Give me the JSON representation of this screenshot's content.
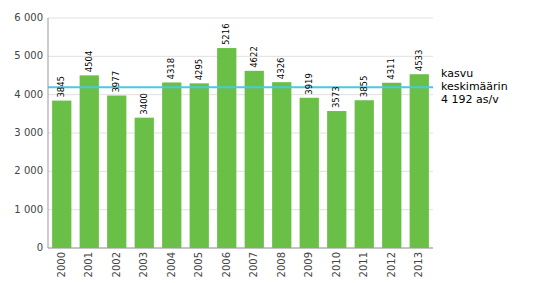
{
  "chart_data": {
    "type": "bar",
    "categories": [
      "2000",
      "2001",
      "2002",
      "2003",
      "2004",
      "2005",
      "2006",
      "2007",
      "2008",
      "2009",
      "2010",
      "2011",
      "2012",
      "2013"
    ],
    "values": [
      3845,
      4504,
      3977,
      3400,
      4318,
      4295,
      5216,
      4622,
      4326,
      3919,
      3573,
      3855,
      4311,
      4533
    ],
    "color": "#6abf47",
    "ylim": [
      0,
      6000
    ],
    "yticks": [
      0,
      {
        "value": 1000,
        "label": "1 000"
      },
      {
        "value": 2000,
        "label": "2 000"
      },
      {
        "value": 3000,
        "label": "3 000"
      },
      {
        "value": 4000,
        "label": "4 000"
      },
      {
        "value": 5000,
        "label": "5 000"
      },
      {
        "value": 6000,
        "label": "6 000"
      }
    ],
    "grid": true,
    "data_labels": true,
    "annotations": [
      {
        "text": "kasvu\nkeskimäärin\n4 192 as/v",
        "y": 4192,
        "color": "#4dc8e0"
      }
    ]
  }
}
